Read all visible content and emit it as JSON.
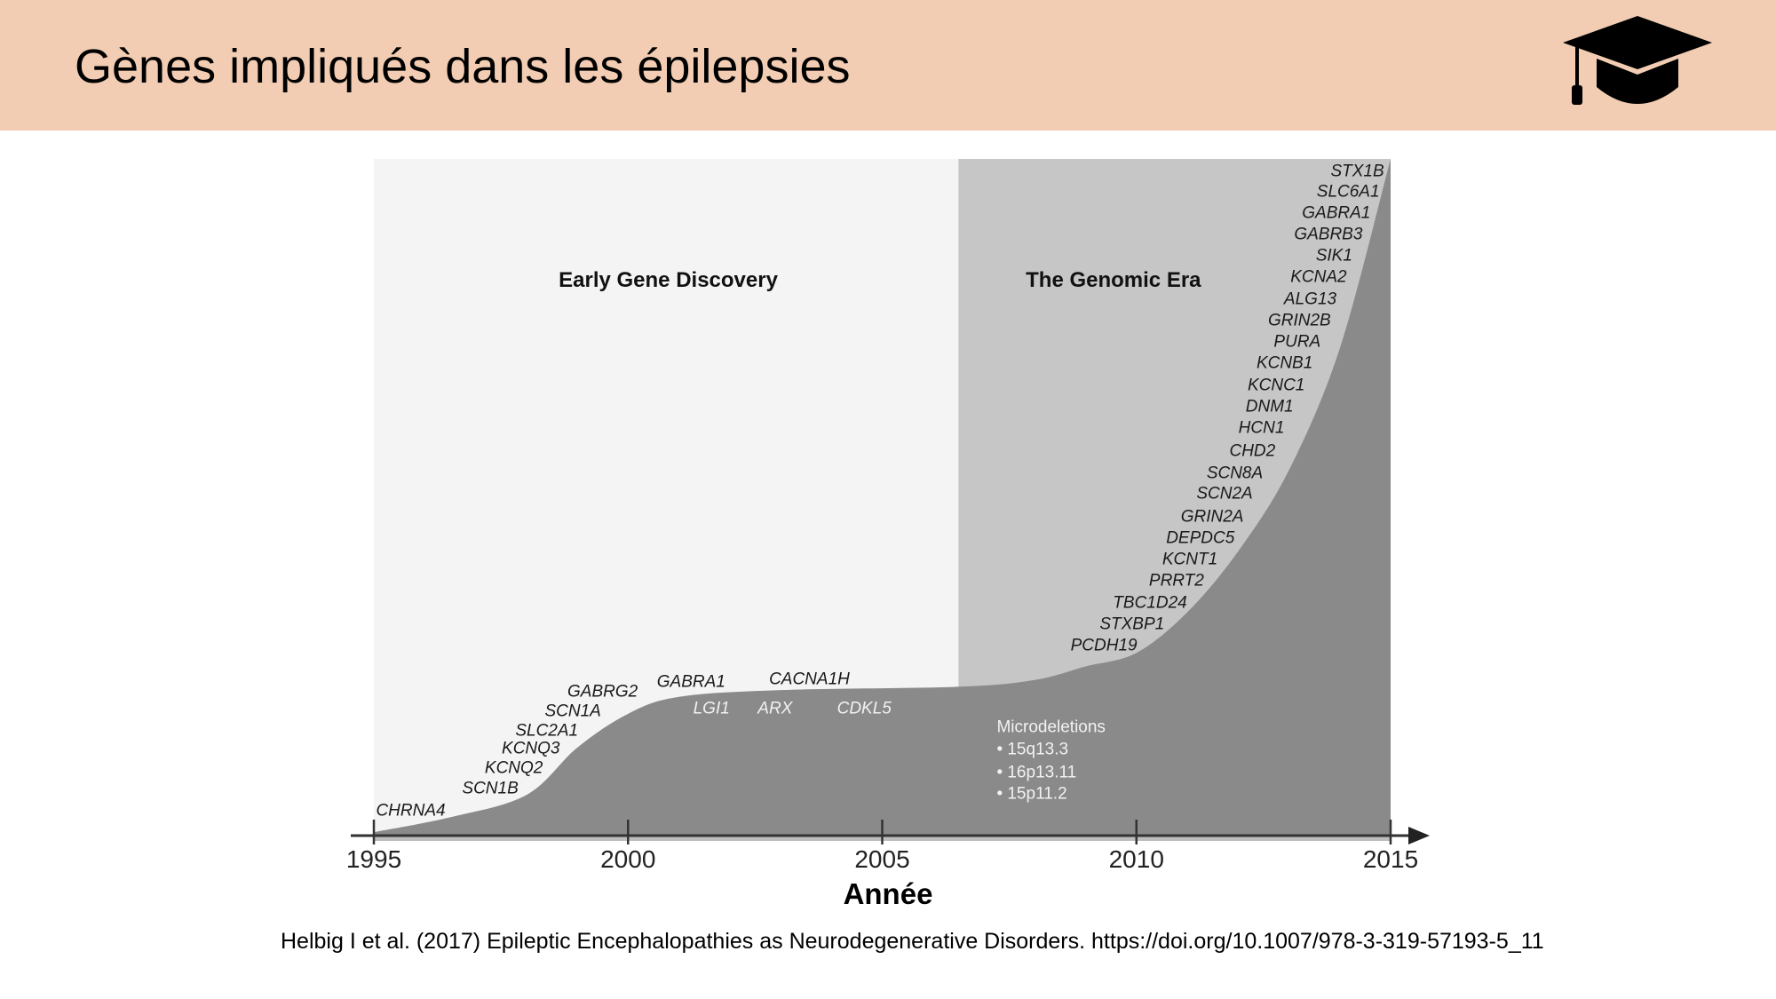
{
  "header": {
    "title": "Gènes impliqués dans les épilepsies",
    "icon": "graduation-cap-icon",
    "background": "#f2cdb3"
  },
  "chart_data": {
    "type": "area",
    "xlabel": "Année",
    "ylabel": "",
    "xlim": [
      1995,
      2015
    ],
    "x_ticks": [
      "1995",
      "2000",
      "2005",
      "2010",
      "2015"
    ],
    "curve": {
      "x": [
        1995,
        1996.5,
        1998,
        1999,
        2000,
        2001,
        2003,
        2006.5,
        2008,
        2009,
        2010,
        2011,
        2012,
        2013,
        2014,
        2015
      ],
      "y_relative_percent": [
        0.5,
        2.7,
        6,
        13,
        18,
        20.5,
        21.5,
        22,
        23,
        25,
        27,
        33,
        42,
        54,
        72,
        100
      ]
    },
    "eras": [
      {
        "label": "Early Gene Discovery",
        "start": 1995,
        "end": 2006.5,
        "color": "#f4f4f4"
      },
      {
        "label": "The Genomic Era",
        "start": 2006.5,
        "end": 2015,
        "color": "#c6c6c6"
      }
    ],
    "fill_color": "#8a8a8a",
    "early_genes": [
      "CHRNA4",
      "SCN1B",
      "KCNQ2",
      "KCNQ3",
      "SLC2A1",
      "SCN1A",
      "GABRG2",
      "GABRA1",
      "CACNA1H"
    ],
    "early_genes_inside": [
      "LGI1",
      "ARX",
      "CDKL5"
    ],
    "genomic_genes": [
      "STX1B",
      "SLC6A1",
      "GABRA1",
      "GABRB3",
      "SIK1",
      "KCNA2",
      "ALG13",
      "GRIN2B",
      "PURA",
      "KCNB1",
      "KCNC1",
      "DNM1",
      "HCN1",
      "CHD2",
      "SCN8A",
      "SCN2A",
      "GRIN2A",
      "DEPDC5",
      "KCNT1",
      "PRRT2",
      "TBC1D24",
      "STXBP1",
      "PCDH19"
    ],
    "microdeletions": {
      "title": "Microdeletions",
      "items": [
        "• 15q13.3",
        "• 16p13.11",
        "• 15p11.2"
      ]
    }
  },
  "citation": "Helbig I et al. (2017) Epileptic Encephalopathies as Neurodegenerative Disorders. https://doi.org/10.1007/978-3-319-57193-5_11"
}
